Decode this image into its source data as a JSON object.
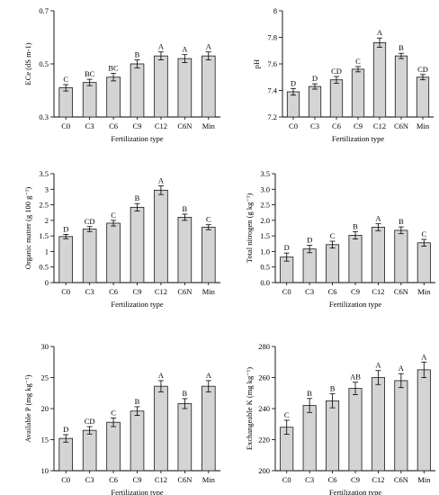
{
  "chart_data": [
    {
      "type": "bar",
      "ylabel": "ECe (dS m-1)",
      "xlabel": "Fertilization type",
      "categories": [
        "C0",
        "C3",
        "C6",
        "C9",
        "C12",
        "C6N",
        "Min"
      ],
      "values": [
        0.41,
        0.43,
        0.45,
        0.5,
        0.53,
        0.52,
        0.53
      ],
      "errors": [
        0.012,
        0.012,
        0.014,
        0.015,
        0.015,
        0.015,
        0.015
      ],
      "letters": [
        "C",
        "BC",
        "BC",
        "B",
        "A",
        "A",
        "A"
      ],
      "ylim": [
        0.3,
        0.7
      ],
      "yticks": [
        0.3,
        0.5,
        0.7
      ],
      "ytick_labels": [
        "0.3",
        "0.5",
        "0.7"
      ]
    },
    {
      "type": "bar",
      "ylabel": "pH",
      "xlabel": "Fertilization type",
      "categories": [
        "C0",
        "C3",
        "C6",
        "C9",
        "C12",
        "C6N",
        "Min"
      ],
      "values": [
        7.39,
        7.43,
        7.48,
        7.56,
        7.76,
        7.66,
        7.5
      ],
      "errors": [
        0.025,
        0.02,
        0.025,
        0.02,
        0.035,
        0.02,
        0.02
      ],
      "letters": [
        "D",
        "D",
        "CD",
        "C",
        "A",
        "B",
        "CD"
      ],
      "ylim": [
        7.2,
        8.0
      ],
      "yticks": [
        7.2,
        7.4,
        7.6,
        7.8,
        8.0
      ],
      "ytick_labels": [
        "7.2",
        "7.4",
        "7.6",
        "7.8",
        "8"
      ]
    },
    {
      "type": "bar",
      "ylabel": "Organic matter (g 100 g⁻¹)",
      "xlabel": "Fertilization type",
      "categories": [
        "C0",
        "C3",
        "C6",
        "C9",
        "C12",
        "C6N",
        "Min"
      ],
      "values": [
        1.48,
        1.72,
        1.91,
        2.42,
        2.97,
        2.1,
        1.78
      ],
      "errors": [
        0.07,
        0.08,
        0.09,
        0.12,
        0.14,
        0.1,
        0.08
      ],
      "letters": [
        "D",
        "CD",
        "C",
        "B",
        "A",
        "B",
        "C"
      ],
      "ylim": [
        0,
        3.5
      ],
      "yticks": [
        0,
        0.5,
        1,
        1.5,
        2,
        2.5,
        3,
        3.5
      ],
      "ytick_labels": [
        "0",
        "0.5",
        "1",
        "1.5",
        "2",
        "2.5",
        "3",
        "3.5"
      ]
    },
    {
      "type": "bar",
      "ylabel": "Total nitrogen (g kg⁻¹)",
      "xlabel": "Fertilization type",
      "categories": [
        "C0",
        "C3",
        "C6",
        "C9",
        "C12",
        "C6N",
        "Min"
      ],
      "values": [
        0.82,
        1.08,
        1.22,
        1.52,
        1.78,
        1.68,
        1.28
      ],
      "errors": [
        0.13,
        0.12,
        0.11,
        0.12,
        0.11,
        0.11,
        0.11
      ],
      "letters": [
        "D",
        "D",
        "C",
        "B",
        "A",
        "B",
        "C"
      ],
      "ylim": [
        0,
        3.5
      ],
      "yticks": [
        0,
        0.5,
        1,
        1.5,
        2,
        2.5,
        3,
        3.5
      ],
      "ytick_labels": [
        "0.0",
        "0.5",
        "1.0",
        "1.5",
        "2.0",
        "2.5",
        "3.0",
        "3.5"
      ]
    },
    {
      "type": "bar",
      "ylabel": "Available P (mg kg⁻¹)",
      "xlabel": "Fertilization type",
      "categories": [
        "C0",
        "C3",
        "C6",
        "C9",
        "C12",
        "C6N",
        "Min"
      ],
      "values": [
        15.2,
        16.5,
        17.8,
        19.6,
        23.6,
        20.8,
        23.6
      ],
      "errors": [
        0.6,
        0.6,
        0.7,
        0.7,
        0.9,
        0.8,
        0.9
      ],
      "letters": [
        "D",
        "CD",
        "C",
        "B",
        "A",
        "B",
        "A"
      ],
      "ylim": [
        10,
        30
      ],
      "yticks": [
        10,
        15,
        20,
        25,
        30
      ],
      "ytick_labels": [
        "10",
        "15",
        "20",
        "25",
        "30"
      ]
    },
    {
      "type": "bar",
      "ylabel": "Exchangeable K (mg kg⁻¹)",
      "xlabel": "Fertilization type",
      "categories": [
        "C0",
        "C3",
        "C6",
        "C9",
        "C12",
        "C6N",
        "Min"
      ],
      "values": [
        228,
        242,
        245,
        253,
        260,
        258,
        265
      ],
      "errors": [
        4.5,
        4.5,
        4.5,
        4,
        4.5,
        4.5,
        5
      ],
      "letters": [
        "C",
        "B",
        "B",
        "AB",
        "A",
        "A",
        "A"
      ],
      "ylim": [
        200,
        280
      ],
      "yticks": [
        200,
        220,
        240,
        260,
        280
      ],
      "ytick_labels": [
        "200",
        "220",
        "240",
        "260",
        "280"
      ]
    }
  ]
}
